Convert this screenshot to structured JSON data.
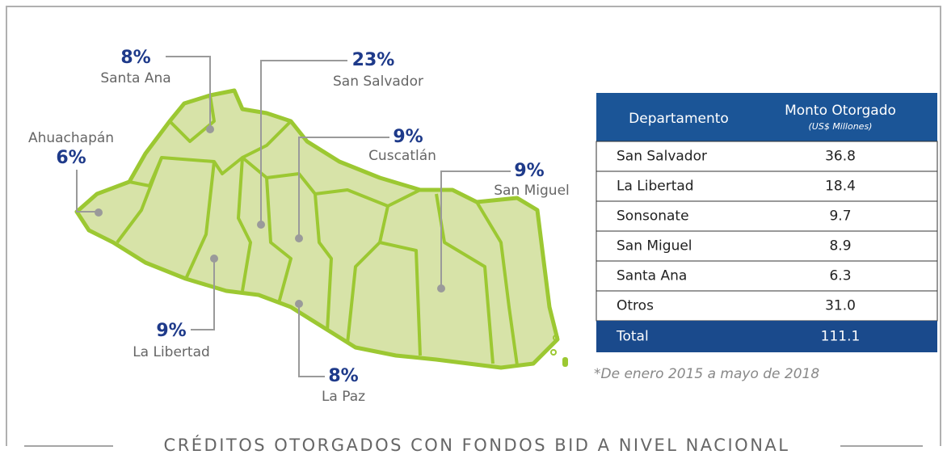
{
  "map": {
    "labels": [
      {
        "percent": "8%",
        "name": "Santa Ana"
      },
      {
        "percent": "6%",
        "name": "Ahuachapán"
      },
      {
        "percent": "23%",
        "name": "San Salvador"
      },
      {
        "percent": "9%",
        "name": "Cuscatlán"
      },
      {
        "percent": "9%",
        "name": "San Miguel"
      },
      {
        "percent": "9%",
        "name": "La Libertad"
      },
      {
        "percent": "8%",
        "name": "La Paz"
      }
    ]
  },
  "table": {
    "header": [
      "Departamento",
      "Monto Otorgado",
      "(US$ Millones)"
    ],
    "rows": [
      [
        "San Salvador",
        "36.8"
      ],
      [
        "La Libertad",
        "18.4"
      ],
      [
        "Sonsonate",
        "9.7"
      ],
      [
        "San Miguel",
        "8.9"
      ],
      [
        "Santa Ana",
        "6.3"
      ],
      [
        "Otros",
        "31.0"
      ]
    ],
    "total": [
      "Total",
      "111.1"
    ]
  },
  "footnote": "*De enero 2015 a mayo de 2018",
  "title": "CRÉDITOS OTORGADOS CON FONDOS BID A NIVEL NACIONAL"
}
